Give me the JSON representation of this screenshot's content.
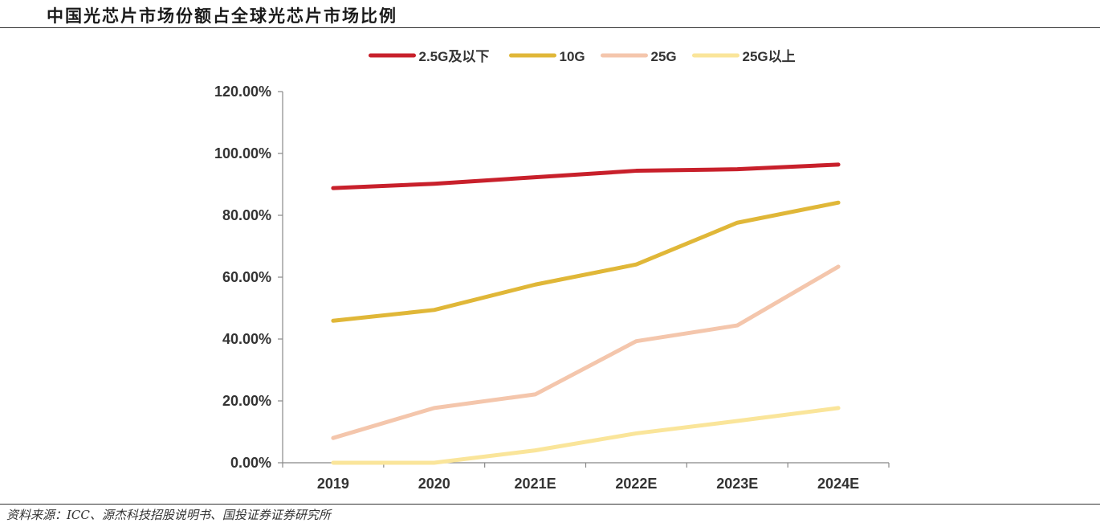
{
  "page": {
    "title": "中国光芯片市场份额占全球光芯片市场比例",
    "source": "资料来源：ICC、源杰科技招股说明书、国投证券证券研究所"
  },
  "chart_data": {
    "type": "line",
    "title": "中国光芯片市场份额占全球光芯片市场比例",
    "categories": [
      "2019",
      "2020",
      "2021E",
      "2022E",
      "2023E",
      "2024E"
    ],
    "ylim": [
      0,
      120
    ],
    "yticks": [
      0,
      20,
      40,
      60,
      80,
      100,
      120
    ],
    "ytick_labels": [
      "0.00%",
      "20.00%",
      "40.00%",
      "60.00%",
      "80.00%",
      "100.00%",
      "120.00%"
    ],
    "grid": false,
    "legend_position": "top-center",
    "series": [
      {
        "name": "2.5G及以下",
        "color": "#c8202b",
        "values": [
          88.8,
          90.2,
          92.3,
          94.4,
          94.9,
          96.4
        ]
      },
      {
        "name": "10G",
        "color": "#e0b738",
        "values": [
          45.9,
          49.4,
          57.6,
          64.1,
          77.6,
          84.1
        ]
      },
      {
        "name": "25G",
        "color": "#f4c6ac",
        "values": [
          8.0,
          17.7,
          22.1,
          39.3,
          44.4,
          63.4
        ]
      },
      {
        "name": "25G以上",
        "color": "#fae59a",
        "values": [
          0,
          0,
          4.0,
          9.5,
          13.5,
          17.7
        ]
      }
    ]
  }
}
